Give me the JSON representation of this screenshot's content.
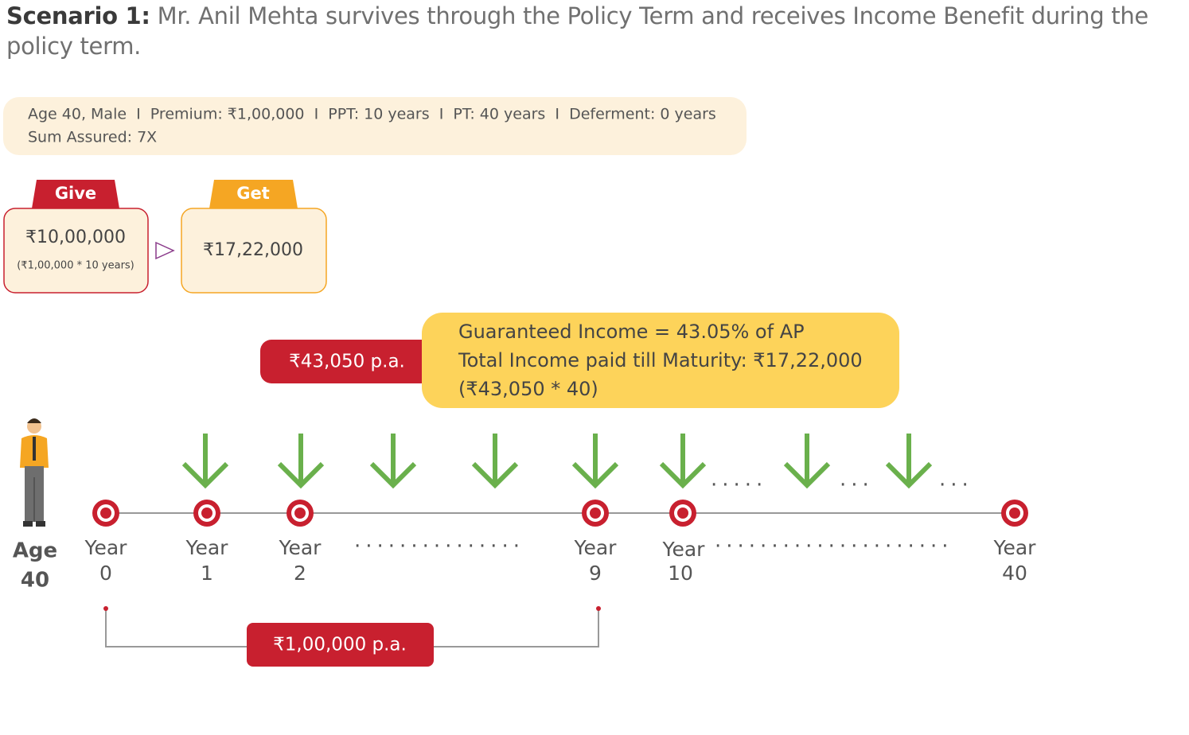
{
  "heading": {
    "bold": "Scenario 1:",
    "text": "Mr. Anil Mehta survives through the Policy Term and receives Income Benefit during the policy term."
  },
  "details": {
    "line1": "Age 40, Male  I  Premium: ₹1,00,000  I  PPT: 10 years  I  PT: 40 years  I  Deferment: 0 years",
    "line2": "Sum Assured: 7X"
  },
  "give": {
    "label": "Give",
    "amount": "₹10,00,000",
    "note": "(₹1,00,000 * 10 years)"
  },
  "get": {
    "label": "Get",
    "amount": "₹17,22,000"
  },
  "income": {
    "tag": "₹43,050 p.a.",
    "lines": [
      "Guaranteed Income = 43.05% of AP",
      "Total Income paid till Maturity: ₹17,22,000",
      "(₹43,050 * 40)"
    ]
  },
  "age": {
    "label": "Age",
    "value": "40"
  },
  "timeline": [
    {
      "label": "Year",
      "num": "0"
    },
    {
      "label": "Year",
      "num": "1"
    },
    {
      "label": "Year",
      "num": "2"
    },
    {
      "label": "Year",
      "num": "9"
    },
    {
      "label": "Year",
      "num": "10"
    },
    {
      "label": "Year",
      "num": "40"
    }
  ],
  "premium": "₹1,00,000 p.a."
}
